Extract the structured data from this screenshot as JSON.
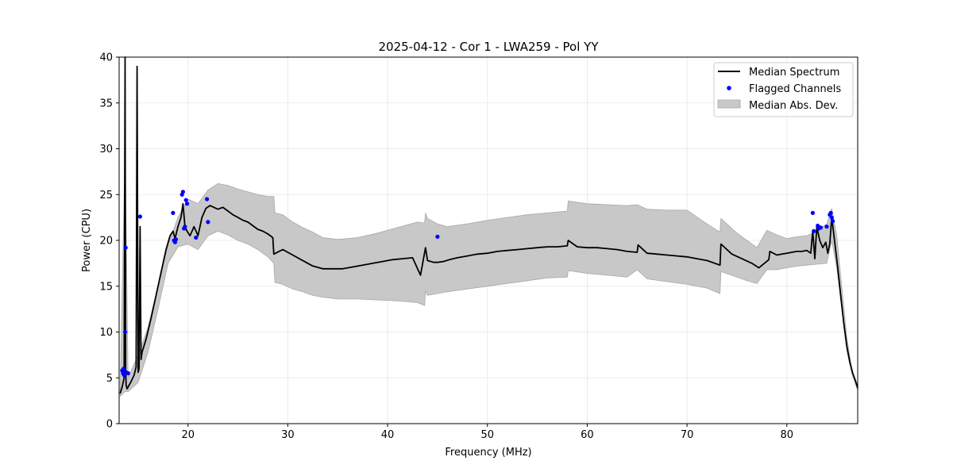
{
  "chart_data": {
    "type": "line",
    "title": "2025-04-12 - Cor 1 - LWA259 - Pol YY",
    "xlabel": "Frequency (MHz)",
    "ylabel": "Power (CPU)",
    "xlim": [
      13.1,
      87.1
    ],
    "ylim": [
      0,
      40
    ],
    "xticks": [
      20,
      30,
      40,
      50,
      60,
      70,
      80
    ],
    "yticks": [
      0,
      5,
      10,
      15,
      20,
      25,
      30,
      35,
      40
    ],
    "grid": true,
    "legend_position": "top-right",
    "legend": [
      "Median Spectrum",
      "Flagged Channels",
      "Median Abs. Dev."
    ],
    "series": [
      {
        "name": "Median Spectrum",
        "color": "#000000",
        "x": [
          13.2,
          13.4,
          13.6,
          13.7,
          13.75,
          13.8,
          13.9,
          14.0,
          14.1,
          14.3,
          14.6,
          14.8,
          14.9,
          15.0,
          15.1,
          15.2,
          15.3,
          15.4,
          15.8,
          16.3,
          16.8,
          17.3,
          17.8,
          18.2,
          18.5,
          18.7,
          19.0,
          19.3,
          19.5,
          19.7,
          19.9,
          20.2,
          20.6,
          21.0,
          21.4,
          21.8,
          22.2,
          22.6,
          23.0,
          23.5,
          24.0,
          24.5,
          25.0,
          25.5,
          26.0,
          26.5,
          27.0,
          27.5,
          28.0,
          28.5,
          28.6,
          29.5,
          30.5,
          31.5,
          32.5,
          33.5,
          34.5,
          35.5,
          36.5,
          37.5,
          38.5,
          39.5,
          40.5,
          41.5,
          42.5,
          43.3,
          43.8,
          44.0,
          44.6,
          45.0,
          45.6,
          46.2,
          47.0,
          48.0,
          49.0,
          50.0,
          51.0,
          52.0,
          53.0,
          54.0,
          55.0,
          56.0,
          57.0,
          58.0,
          58.1,
          59.0,
          60.0,
          61.0,
          62.0,
          63.0,
          64.0,
          65.0,
          65.1,
          66.0,
          67.0,
          68.0,
          69.0,
          70.0,
          71.0,
          72.0,
          73.3,
          73.4,
          74.5,
          75.5,
          76.5,
          77.2,
          78.2,
          78.3,
          79.0,
          79.5,
          80.0,
          80.5,
          81.0,
          81.5,
          82.0,
          82.4,
          82.6,
          82.8,
          83.0,
          83.3,
          83.6,
          83.9,
          84.1,
          84.3,
          84.5,
          84.8,
          85.1,
          85.4,
          85.7,
          86.0,
          86.3,
          86.6,
          86.9,
          87.1
        ],
        "y": [
          3.3,
          4.0,
          5.0,
          40,
          6.0,
          4.2,
          3.8,
          4.0,
          4.2,
          4.6,
          5.3,
          6.2,
          39,
          5.6,
          6.0,
          21.5,
          7.0,
          7.8,
          9.2,
          11.5,
          14.0,
          16.5,
          19.0,
          20.5,
          21.0,
          20.2,
          21.5,
          22.5,
          24.0,
          21.5,
          21.0,
          20.5,
          21.5,
          20.5,
          22.5,
          23.5,
          23.8,
          23.6,
          23.4,
          23.6,
          23.2,
          22.8,
          22.5,
          22.2,
          22.0,
          21.6,
          21.2,
          21.0,
          20.7,
          20.3,
          18.5,
          19.0,
          18.4,
          17.8,
          17.2,
          16.9,
          16.9,
          16.9,
          17.1,
          17.3,
          17.5,
          17.7,
          17.9,
          18.0,
          18.1,
          16.2,
          19.2,
          17.8,
          17.6,
          17.6,
          17.7,
          17.9,
          18.1,
          18.3,
          18.5,
          18.6,
          18.8,
          18.9,
          19.0,
          19.1,
          19.2,
          19.3,
          19.3,
          19.4,
          20.0,
          19.3,
          19.2,
          19.2,
          19.1,
          19.0,
          18.8,
          18.7,
          19.5,
          18.6,
          18.5,
          18.4,
          18.3,
          18.2,
          18.0,
          17.8,
          17.3,
          19.6,
          18.5,
          18.0,
          17.5,
          17.0,
          17.9,
          18.8,
          18.4,
          18.5,
          18.6,
          18.7,
          18.8,
          18.8,
          18.9,
          18.6,
          21.0,
          18.0,
          21.5,
          20.0,
          19.2,
          19.8,
          18.6,
          19.6,
          22.5,
          19.8,
          17.0,
          14.0,
          11.0,
          8.5,
          6.8,
          5.5,
          4.6,
          3.9
        ]
      },
      {
        "name": "Median Abs. Dev.",
        "color": "#c8c8c8",
        "x": [
          13.2,
          13.7,
          14.0,
          15.0,
          16.0,
          17.0,
          18.0,
          19.0,
          20.0,
          21.0,
          22.0,
          23.0,
          24.0,
          25.0,
          26.0,
          27.0,
          28.0,
          28.6,
          28.7,
          29.5,
          30.5,
          31.5,
          32.5,
          33.5,
          35.0,
          37.0,
          39.0,
          41.0,
          43.0,
          43.7,
          43.8,
          44.0,
          45.0,
          46.0,
          48.0,
          50.0,
          52.0,
          54.0,
          56.0,
          58.0,
          58.1,
          60.0,
          62.0,
          64.0,
          65.0,
          66.0,
          68.0,
          70.0,
          72.0,
          73.3,
          73.4,
          75.0,
          76.0,
          77.0,
          78.0,
          79.0,
          80.0,
          81.0,
          82.0,
          83.0,
          84.0,
          84.5,
          85.0,
          85.5,
          86.0,
          86.5,
          87.1
        ],
        "upper": [
          3.6,
          30,
          5.0,
          7.5,
          10.5,
          15.0,
          19.5,
          22.5,
          24.5,
          24.0,
          25.5,
          26.2,
          26.0,
          25.6,
          25.3,
          25.0,
          24.8,
          24.8,
          23.0,
          22.8,
          22.0,
          21.4,
          20.9,
          20.3,
          20.1,
          20.3,
          20.8,
          21.4,
          22.0,
          21.9,
          23.0,
          22.4,
          21.8,
          21.5,
          21.8,
          22.2,
          22.5,
          22.8,
          23.0,
          23.2,
          24.3,
          24.0,
          23.9,
          23.8,
          23.9,
          23.4,
          23.3,
          23.3,
          21.8,
          20.9,
          22.4,
          20.8,
          20.0,
          19.2,
          21.1,
          20.6,
          20.2,
          20.4,
          20.5,
          21.0,
          21.8,
          23.5,
          20.5,
          15.0,
          9.5,
          6.0,
          4.0
        ],
        "lower": [
          3.0,
          3.5,
          3.5,
          4.5,
          7.8,
          12.5,
          17.5,
          19.3,
          19.6,
          19.0,
          20.5,
          21.0,
          20.6,
          20.0,
          19.6,
          19.0,
          18.2,
          17.5,
          15.4,
          15.2,
          14.7,
          14.4,
          14.0,
          13.8,
          13.6,
          13.6,
          13.5,
          13.4,
          13.2,
          12.9,
          14.5,
          14.0,
          14.2,
          14.4,
          14.7,
          15.0,
          15.3,
          15.6,
          15.9,
          16.0,
          16.7,
          16.4,
          16.2,
          16.0,
          16.8,
          15.8,
          15.5,
          15.2,
          14.8,
          14.2,
          16.6,
          16.0,
          15.6,
          15.3,
          16.8,
          16.8,
          17.0,
          17.2,
          17.3,
          17.4,
          17.5,
          20.0,
          17.0,
          12.5,
          8.0,
          5.5,
          3.6
        ]
      },
      {
        "name": "Flagged Channels",
        "color": "#0000ff",
        "x": [
          13.4,
          13.5,
          13.55,
          13.6,
          13.7,
          13.75,
          13.8,
          14.0,
          15.2,
          18.5,
          18.6,
          18.7,
          18.8,
          19.4,
          19.5,
          19.6,
          19.7,
          19.8,
          19.9,
          20.8,
          21.9,
          22.0,
          45.0,
          82.6,
          82.7,
          83.1,
          83.2,
          83.4,
          84.0,
          84.3,
          84.4,
          84.5,
          84.6
        ],
        "y": [
          5.8,
          5.5,
          6.0,
          5.3,
          10.0,
          19.2,
          5.6,
          5.5,
          22.6,
          23.0,
          20.0,
          19.8,
          20.1,
          25.0,
          25.3,
          21.3,
          21.5,
          24.4,
          24.0,
          20.3,
          24.5,
          22.0,
          20.4,
          23.0,
          21.0,
          21.6,
          21.3,
          21.4,
          21.5,
          22.8,
          23.0,
          22.5,
          22.1
        ]
      }
    ]
  }
}
